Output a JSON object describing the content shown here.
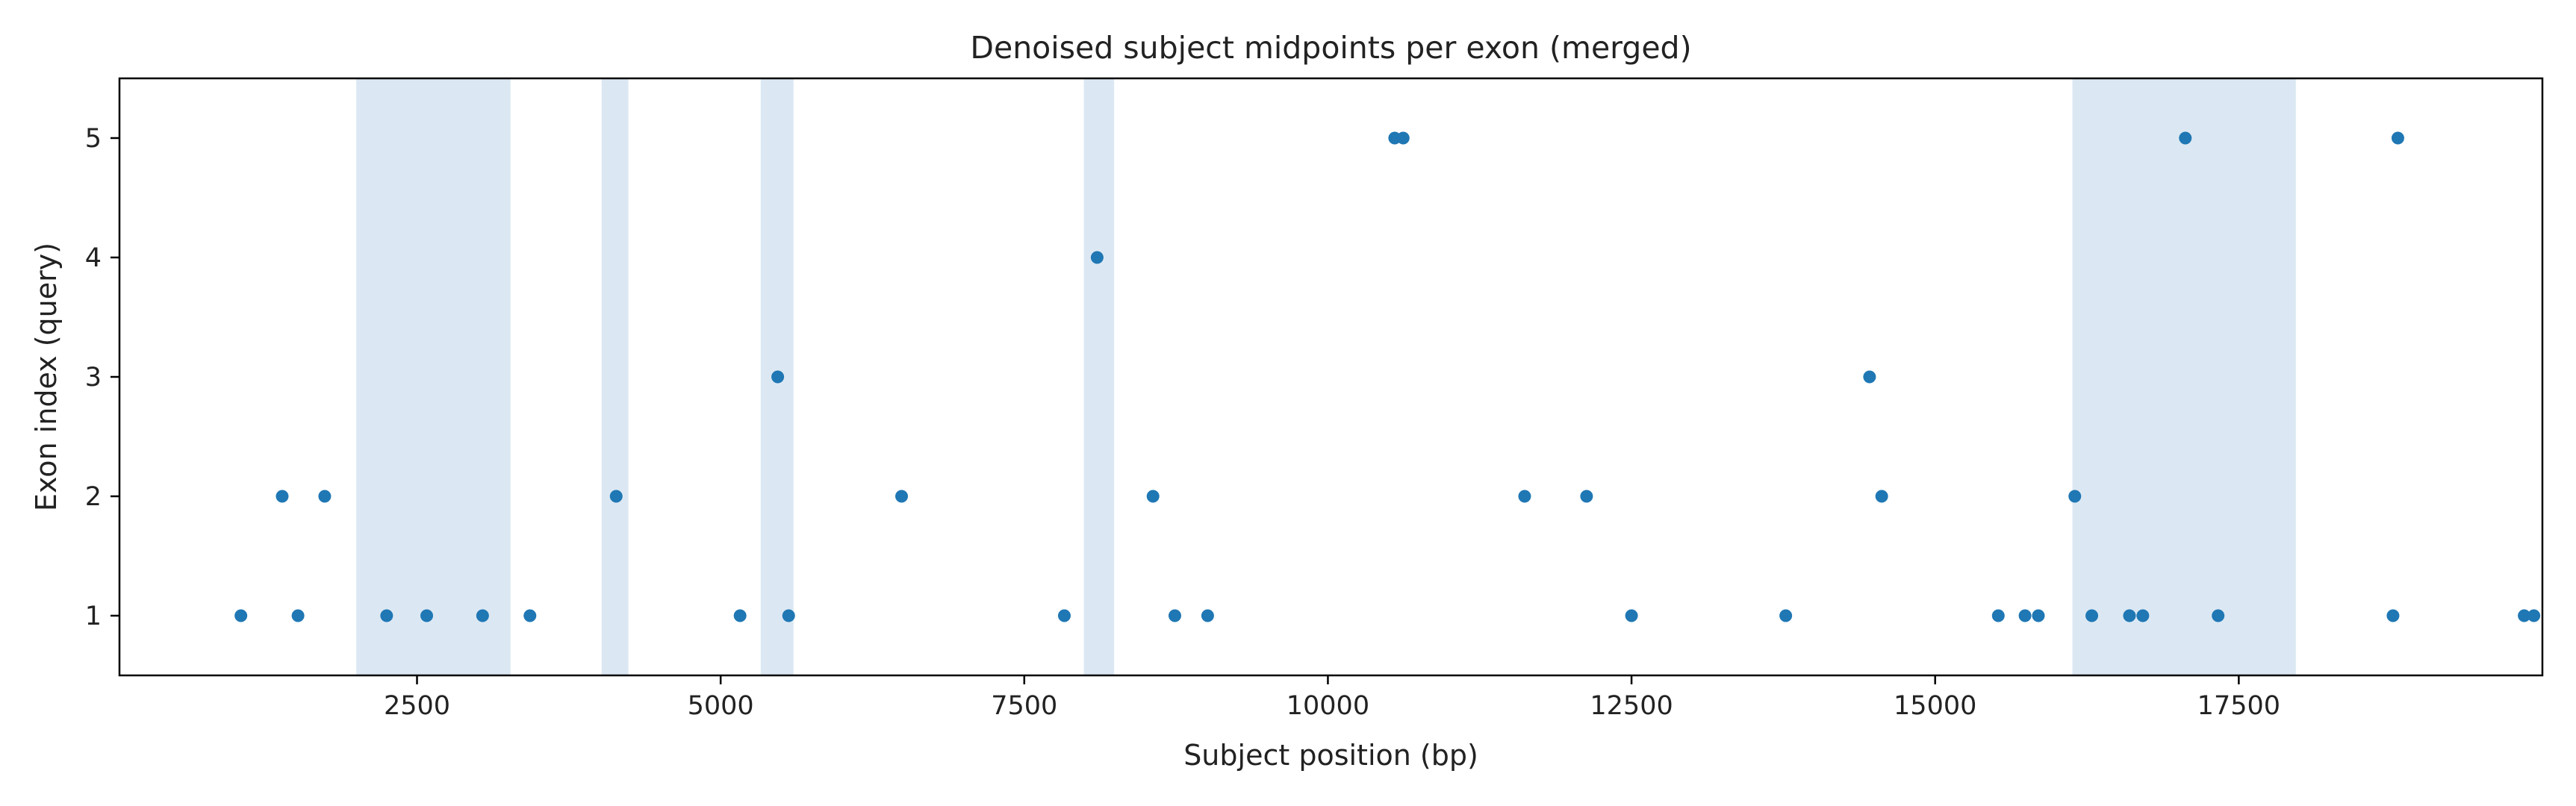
{
  "chart_data": {
    "type": "scatter",
    "title": "Denoised subject midpoints per exon (merged)",
    "xlabel": "Subject position (bp)",
    "ylabel": "Exon index (query)",
    "xlim": [
      50,
      20000
    ],
    "ylim": [
      0.5,
      5.5
    ],
    "xticks": [
      2500,
      5000,
      7500,
      10000,
      12500,
      15000,
      17500
    ],
    "yticks": [
      1,
      2,
      3,
      4,
      5
    ],
    "grid": false,
    "legend": "none",
    "colors": {
      "point": "#1f77b4",
      "band": "#dbe8f3",
      "axis": "#000000"
    },
    "shaded_regions": [
      [
        2000,
        3270
      ],
      [
        4020,
        4240
      ],
      [
        5330,
        5600
      ],
      [
        7990,
        8240
      ],
      [
        16130,
        17970
      ]
    ],
    "points": [
      {
        "x": 1050,
        "y": 1
      },
      {
        "x": 1390,
        "y": 2
      },
      {
        "x": 1520,
        "y": 1
      },
      {
        "x": 1740,
        "y": 2
      },
      {
        "x": 2250,
        "y": 1
      },
      {
        "x": 2580,
        "y": 1
      },
      {
        "x": 3040,
        "y": 1
      },
      {
        "x": 3430,
        "y": 1
      },
      {
        "x": 4140,
        "y": 2
      },
      {
        "x": 5160,
        "y": 1
      },
      {
        "x": 5470,
        "y": 3
      },
      {
        "x": 5560,
        "y": 1
      },
      {
        "x": 6490,
        "y": 2
      },
      {
        "x": 7830,
        "y": 1
      },
      {
        "x": 8100,
        "y": 4
      },
      {
        "x": 8560,
        "y": 2
      },
      {
        "x": 8740,
        "y": 1
      },
      {
        "x": 9010,
        "y": 1
      },
      {
        "x": 10550,
        "y": 5
      },
      {
        "x": 10620,
        "y": 5
      },
      {
        "x": 11620,
        "y": 2
      },
      {
        "x": 12130,
        "y": 2
      },
      {
        "x": 12500,
        "y": 1
      },
      {
        "x": 13770,
        "y": 1
      },
      {
        "x": 14460,
        "y": 3
      },
      {
        "x": 14560,
        "y": 2
      },
      {
        "x": 15520,
        "y": 1
      },
      {
        "x": 15740,
        "y": 1
      },
      {
        "x": 15850,
        "y": 1
      },
      {
        "x": 16150,
        "y": 2
      },
      {
        "x": 16290,
        "y": 1
      },
      {
        "x": 16600,
        "y": 1
      },
      {
        "x": 16710,
        "y": 1
      },
      {
        "x": 17060,
        "y": 5
      },
      {
        "x": 17330,
        "y": 1
      },
      {
        "x": 18770,
        "y": 1
      },
      {
        "x": 18810,
        "y": 5
      },
      {
        "x": 19850,
        "y": 1
      },
      {
        "x": 19930,
        "y": 1
      }
    ]
  }
}
